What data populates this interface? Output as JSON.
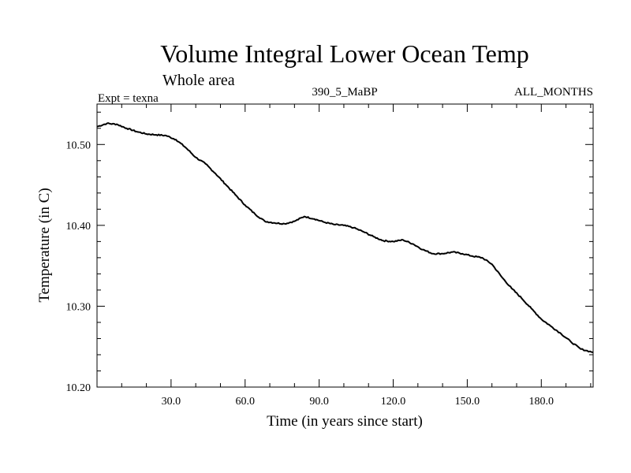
{
  "chart_data": {
    "type": "line",
    "title": "Volume Integral Lower Ocean Temp",
    "subtitle": "Whole area",
    "experiment_label": "Expt = texna",
    "run_label": "390_5_MaBP",
    "period_label": "ALL_MONTHS",
    "xlabel": "Time (in years since start)",
    "ylabel": "Temperature (in C)",
    "xlim": [
      0,
      201
    ],
    "ylim": [
      10.2,
      10.55
    ],
    "x_ticks": [
      30,
      60,
      90,
      120,
      150,
      180
    ],
    "x_tick_labels": [
      "30.0",
      "60.0",
      "90.0",
      "120.0",
      "150.0",
      "180.0"
    ],
    "y_ticks": [
      10.2,
      10.3,
      10.4,
      10.5
    ],
    "y_tick_labels": [
      "10.20",
      "10.30",
      "10.40",
      "10.50"
    ],
    "x_minor_step": 10,
    "y_minor_step": 0.02,
    "grid": false,
    "series": [
      {
        "name": "texna",
        "color": "#000000",
        "x": [
          0,
          4,
          8,
          12,
          16,
          20,
          24,
          28,
          32,
          36,
          40,
          44,
          48,
          52,
          56,
          60,
          64,
          68,
          72,
          76,
          80,
          84,
          88,
          92,
          96,
          100,
          104,
          108,
          112,
          116,
          120,
          124,
          128,
          132,
          136,
          140,
          144,
          148,
          152,
          156,
          160,
          164,
          168,
          172,
          176,
          180,
          184,
          188,
          192,
          196,
          201
        ],
        "values": [
          10.522,
          10.526,
          10.525,
          10.52,
          10.516,
          10.513,
          10.512,
          10.511,
          10.506,
          10.496,
          10.484,
          10.476,
          10.464,
          10.451,
          10.438,
          10.425,
          10.414,
          10.405,
          10.403,
          10.402,
          10.405,
          10.411,
          10.408,
          10.404,
          10.401,
          10.4,
          10.397,
          10.392,
          10.386,
          10.381,
          10.38,
          10.382,
          10.377,
          10.37,
          10.365,
          10.365,
          10.367,
          10.365,
          10.362,
          10.36,
          10.352,
          10.336,
          10.322,
          10.31,
          10.297,
          10.284,
          10.275,
          10.266,
          10.256,
          10.247,
          10.243
        ]
      }
    ]
  }
}
